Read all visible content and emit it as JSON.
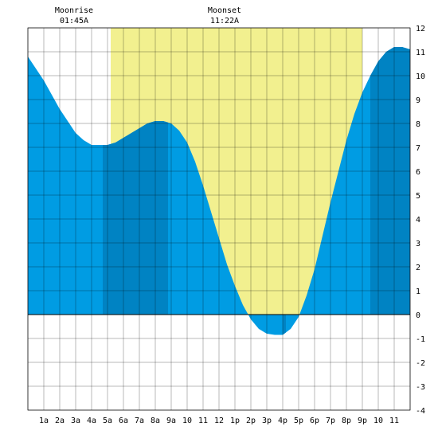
{
  "moon": {
    "rise_label": "Moonrise",
    "rise_time": "01:45A",
    "set_label": "Moonset",
    "set_time": "11:22A"
  },
  "colors": {
    "daylight": "#f2f08f",
    "tide_fill": "#009ce3",
    "tide_night": "#0083c3",
    "grid": "#000000",
    "background": "#ffffff"
  },
  "chart_data": {
    "type": "area",
    "title": "",
    "xlabel": "",
    "ylabel": "",
    "xlim": [
      0,
      24
    ],
    "ylim": [
      -4,
      12
    ],
    "x_ticks": [
      {
        "x": 1,
        "label": "1a"
      },
      {
        "x": 2,
        "label": "2a"
      },
      {
        "x": 3,
        "label": "3a"
      },
      {
        "x": 4,
        "label": "4a"
      },
      {
        "x": 5,
        "label": "5a"
      },
      {
        "x": 6,
        "label": "6a"
      },
      {
        "x": 7,
        "label": "7a"
      },
      {
        "x": 8,
        "label": "8a"
      },
      {
        "x": 9,
        "label": "9a"
      },
      {
        "x": 10,
        "label": "10"
      },
      {
        "x": 11,
        "label": "11"
      },
      {
        "x": 12,
        "label": "12"
      },
      {
        "x": 13,
        "label": "1p"
      },
      {
        "x": 14,
        "label": "2p"
      },
      {
        "x": 15,
        "label": "3p"
      },
      {
        "x": 16,
        "label": "4p"
      },
      {
        "x": 17,
        "label": "5p"
      },
      {
        "x": 18,
        "label": "6p"
      },
      {
        "x": 19,
        "label": "7p"
      },
      {
        "x": 20,
        "label": "8p"
      },
      {
        "x": 21,
        "label": "9p"
      },
      {
        "x": 22,
        "label": "10"
      },
      {
        "x": 23,
        "label": "11"
      }
    ],
    "y_ticks": [
      -4,
      -3,
      -2,
      -1,
      0,
      1,
      2,
      3,
      4,
      5,
      6,
      7,
      8,
      9,
      10,
      11,
      12
    ],
    "grid": true,
    "daylight_hours": [
      5.2,
      21.0
    ],
    "night_bands": [
      [
        4.7,
        8.8
      ],
      [
        16.0,
        16.2
      ],
      [
        21.5,
        24.0
      ]
    ],
    "series": [
      {
        "x": [
          0,
          0.5,
          1,
          1.5,
          2,
          2.5,
          3,
          3.5,
          4,
          4.5,
          5,
          5.5,
          6,
          6.5,
          7,
          7.5,
          8,
          8.5,
          9,
          9.5,
          10,
          10.5,
          11,
          11.5,
          12,
          12.5,
          13,
          13.5,
          14,
          14.5,
          15,
          15.5,
          16,
          16.5,
          17,
          17.5,
          18,
          18.5,
          19,
          19.5,
          20,
          20.5,
          21,
          21.5,
          22,
          22.5,
          23,
          23.5,
          24
        ],
        "y": [
          10.8,
          10.3,
          9.8,
          9.2,
          8.6,
          8.1,
          7.6,
          7.3,
          7.1,
          7.1,
          7.1,
          7.2,
          7.4,
          7.6,
          7.8,
          8.0,
          8.1,
          8.1,
          8.0,
          7.7,
          7.2,
          6.4,
          5.4,
          4.3,
          3.2,
          2.1,
          1.2,
          0.4,
          -0.2,
          -0.6,
          -0.8,
          -0.85,
          -0.85,
          -0.6,
          -0.1,
          0.8,
          1.9,
          3.3,
          4.7,
          6.0,
          7.3,
          8.4,
          9.3,
          10.0,
          10.6,
          11.0,
          11.2,
          11.2,
          11.1
        ]
      }
    ]
  }
}
